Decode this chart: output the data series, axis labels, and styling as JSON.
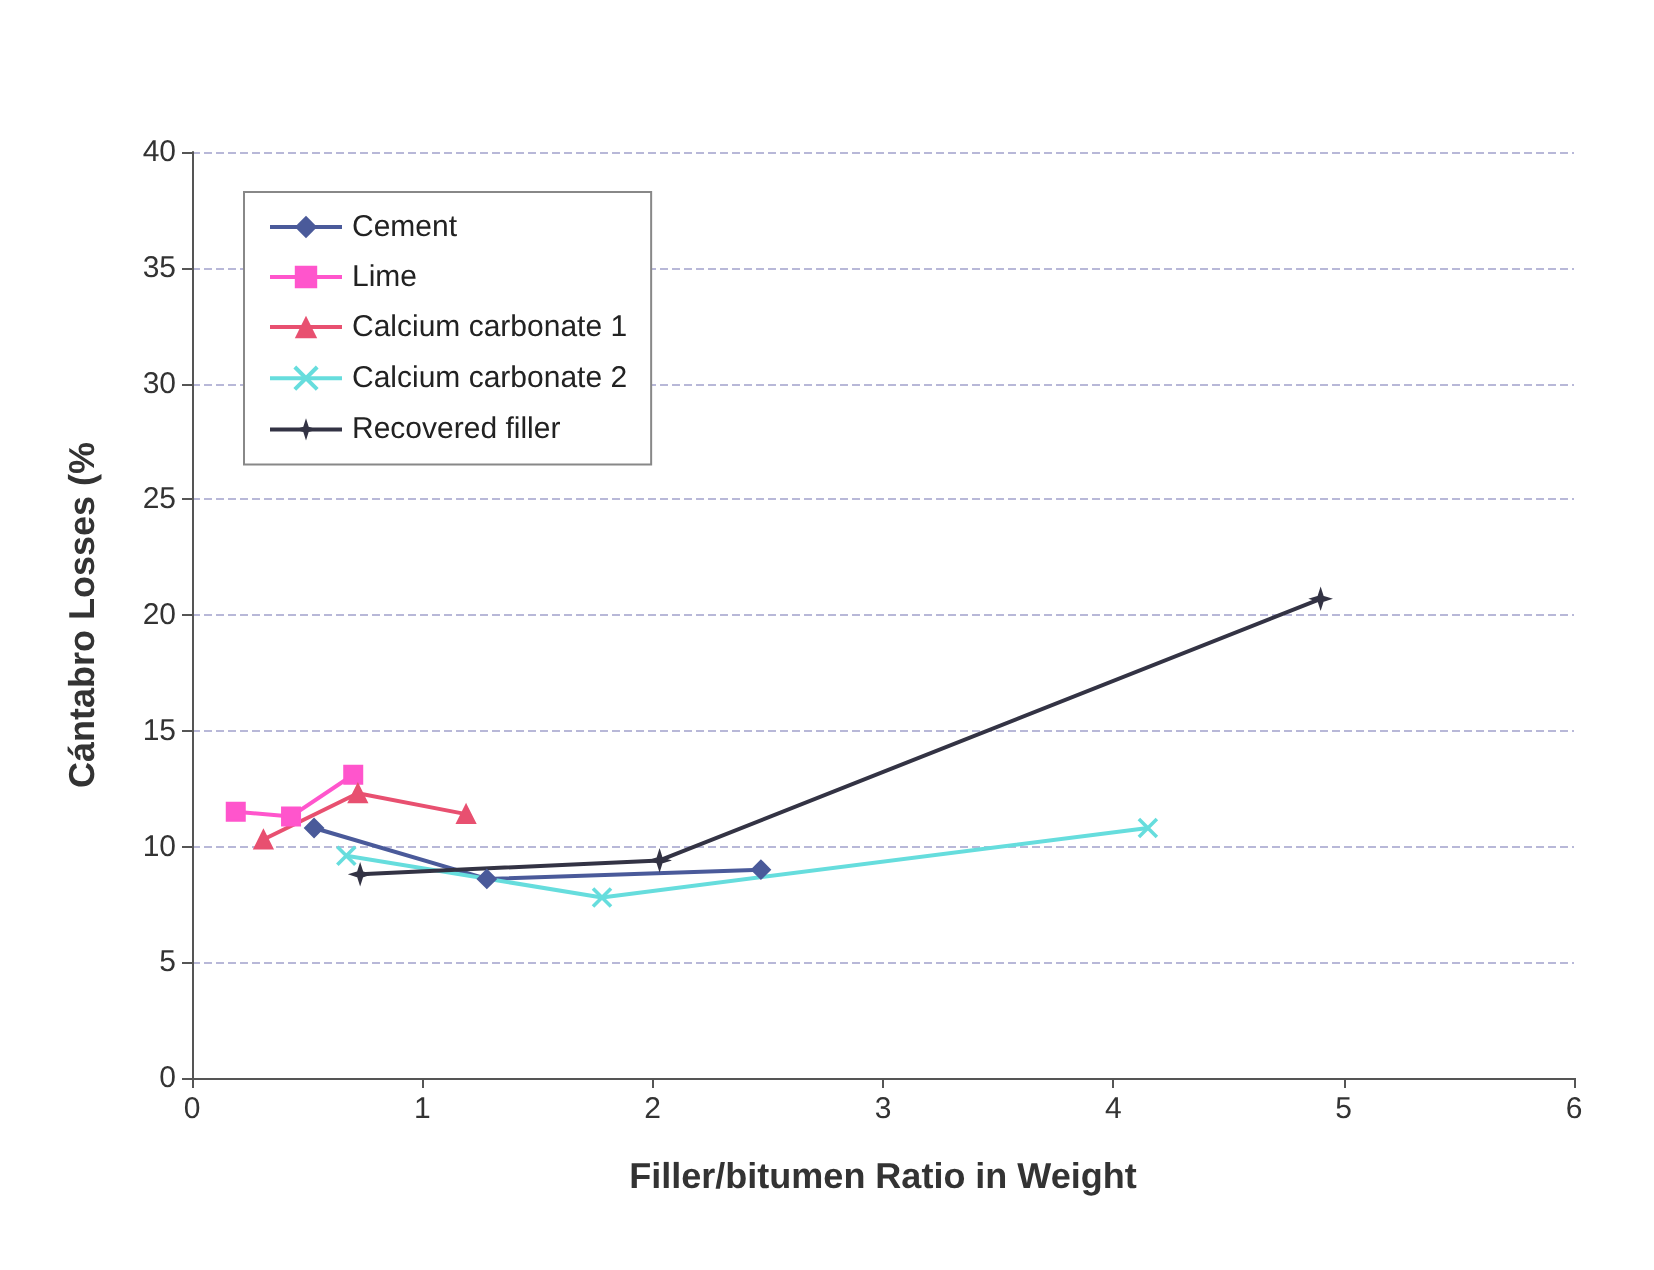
{
  "chart_data": {
    "type": "line",
    "xlabel": "Filler/bitumen Ratio in Weight",
    "ylabel": "Cántabro Losses (%",
    "xlim": [
      0,
      6
    ],
    "xticks": [
      0,
      1,
      2,
      3,
      4,
      5,
      6
    ],
    "ylim": [
      0,
      40
    ],
    "yticks": [
      0,
      5,
      10,
      15,
      20,
      25,
      30,
      35,
      40
    ],
    "grid": "y",
    "legend": "top left",
    "series": [
      {
        "name": "Cement",
        "color": "#4a5a9a",
        "marker": "diamond",
        "x": [
          0.53,
          1.28,
          2.47
        ],
        "values": [
          10.8,
          8.6,
          9.0
        ]
      },
      {
        "name": "Lime",
        "color": "#ff55cc",
        "marker": "square",
        "x": [
          0.19,
          0.43,
          0.7
        ],
        "values": [
          11.5,
          11.3,
          13.1
        ]
      },
      {
        "name": "Calcium carbonate 1",
        "color": "#e85070",
        "marker": "triangle",
        "x": [
          0.31,
          0.72,
          1.19
        ],
        "values": [
          10.3,
          12.3,
          11.4
        ]
      },
      {
        "name": "Calcium carbonate 2",
        "color": "#66dddd",
        "marker": "cross",
        "x": [
          0.67,
          1.78,
          4.15
        ],
        "values": [
          9.6,
          7.8,
          10.8
        ]
      },
      {
        "name": "Recovered filler",
        "color": "#333344",
        "marker": "star",
        "x": [
          0.73,
          2.03,
          4.9
        ],
        "values": [
          8.8,
          9.4,
          20.7
        ]
      }
    ]
  }
}
